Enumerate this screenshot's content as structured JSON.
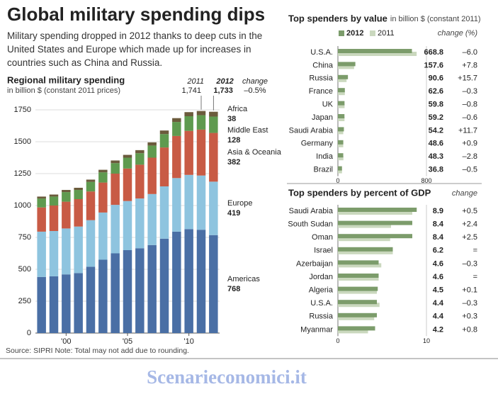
{
  "page": {
    "title": "Global military spending dips",
    "subtitle": "Military spending dropped in 2012 thanks to deep cuts in the United States and Europe which made up for increases in countries such as China and Russia.",
    "source": "Source: SIPRI  Note: Total may not add due to rounding.",
    "watermark": "Scenarieconomici.it"
  },
  "chart_data": [
    {
      "type": "stacked_bar",
      "title": "Regional military spending",
      "subtitle": "in billion $ (constant 2011 prices)",
      "categories": [
        null,
        null,
        "'00",
        null,
        null,
        null,
        null,
        "'05",
        null,
        null,
        null,
        null,
        "'10",
        null,
        null
      ],
      "series": [
        {
          "name": "Americas",
          "color": "#4a6fa5",
          "values": [
            440,
            445,
            460,
            470,
            520,
            575,
            625,
            650,
            665,
            690,
            740,
            795,
            815,
            810,
            768
          ]
        },
        {
          "name": "Europe",
          "color": "#8ec4df",
          "values": [
            355,
            355,
            360,
            365,
            365,
            370,
            380,
            385,
            390,
            400,
            410,
            420,
            425,
            425,
            419
          ]
        },
        {
          "name": "Asia & Oceania",
          "color": "#c85b45",
          "values": [
            190,
            200,
            210,
            215,
            225,
            235,
            245,
            255,
            265,
            285,
            305,
            330,
            345,
            360,
            382
          ]
        },
        {
          "name": "Middle East",
          "color": "#5f9a4f",
          "values": [
            70,
            70,
            75,
            72,
            75,
            80,
            82,
            85,
            90,
            95,
            105,
            110,
            115,
            113,
            128
          ]
        },
        {
          "name": "Africa",
          "color": "#6b5b3c",
          "values": [
            15,
            16,
            17,
            17,
            18,
            20,
            21,
            22,
            24,
            25,
            28,
            30,
            32,
            33,
            38
          ]
        }
      ],
      "ylim": [
        0,
        1750
      ],
      "yticks": [
        0,
        250,
        500,
        750,
        1000,
        1250,
        1500,
        1750
      ],
      "grid": true,
      "annotations": [
        "2011",
        "1,741",
        "2012",
        "1,733",
        "change",
        "–0.5%"
      ]
    },
    {
      "type": "hbar",
      "title": "Top spenders by value",
      "subtitle": "in billion $ (constant 2011)",
      "categories": [
        "U.S.A.",
        "China",
        "Russia",
        "France",
        "UK",
        "Japan",
        "Saudi Arabia",
        "Germany",
        "India",
        "Brazil"
      ],
      "series": [
        {
          "name": "2012",
          "color": "#7c9c6b",
          "values": [
            668.8,
            157.6,
            90.6,
            62.6,
            59.8,
            59.2,
            54.2,
            48.6,
            48.3,
            36.8
          ]
        },
        {
          "name": "2011",
          "color": "#cad8be",
          "values": [
            711.5,
            146.2,
            78.3,
            62.8,
            60.3,
            59.6,
            48.5,
            48.2,
            49.7,
            37.0
          ]
        }
      ],
      "change_header": "change (%)",
      "change_labels": [
        "–6.0",
        "+7.8",
        "+15.7",
        "–0.3",
        "–0.8",
        "–0.6",
        "+11.7",
        "+0.9",
        "–2.8",
        "–0.5"
      ],
      "xlim": [
        0,
        800
      ],
      "xticks": [
        0,
        800
      ],
      "legend": "top"
    },
    {
      "type": "hbar",
      "title": "Top spenders by percent of GDP",
      "categories": [
        "Saudi Arabia",
        "South Sudan",
        "Oman",
        "Israel",
        "Azerbaijan",
        "Jordan",
        "Algeria",
        "U.S.A.",
        "Russia",
        "Myanmar"
      ],
      "series": [
        {
          "color": "#7c9c6b",
          "values": [
            8.9,
            8.4,
            8.4,
            6.2,
            4.6,
            4.6,
            4.5,
            4.4,
            4.4,
            4.2
          ]
        },
        {
          "color": "#cad8be",
          "values": [
            8.4,
            6.0,
            5.9,
            6.2,
            4.9,
            4.6,
            4.4,
            4.7,
            4.1,
            3.4
          ]
        }
      ],
      "change_header": "change",
      "change_labels": [
        "+0.5",
        "+2.4",
        "+2.5",
        "=",
        "–0.3",
        "=",
        "+0.1",
        "–0.3",
        "+0.3",
        "+0.8"
      ],
      "xlim": [
        0,
        10
      ],
      "xticks": [
        0,
        10
      ]
    }
  ]
}
